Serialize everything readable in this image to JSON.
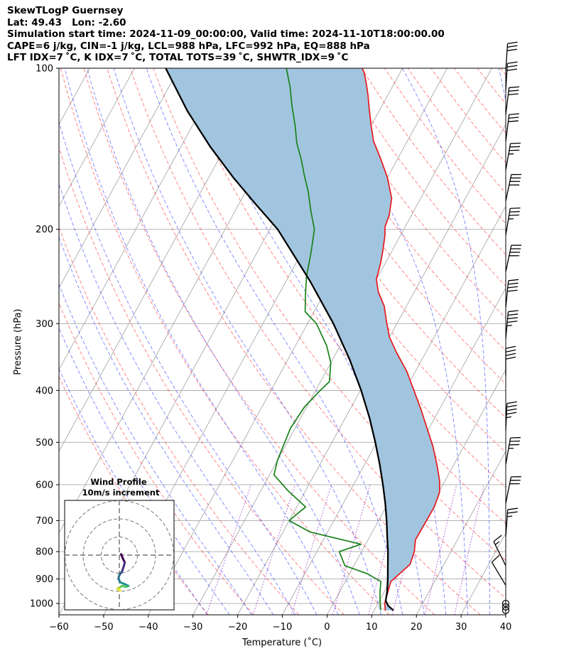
{
  "header": {
    "line1": "SkewTLogP Guernsey",
    "line2": "Lat: 49.43   Lon: -2.60",
    "line3": "Simulation start time: 2024-11-09_00:00:00, Valid time: 2024-11-10T18:00:00.00",
    "line4": "CAPE=6 j/kg, CIN=-1 j/kg, LCL=988 hPa, LFC=992 hPa, EQ=888 hPa",
    "line5": "LFT IDX=7 ˚C, K IDX=7 ˚C, TOTAL TOTS=39 ˚C, SHWTR_IDX=9 ˚C"
  },
  "chart_data": {
    "type": "line",
    "title": "SkewTLogP Guernsey",
    "xlabel": "Temperature (˚C)",
    "ylabel": "Pressure (hPa)",
    "xlim": [
      -60,
      40
    ],
    "ylim": [
      1050,
      100
    ],
    "x_ticks": [
      -60,
      -50,
      -40,
      -30,
      -20,
      -10,
      0,
      10,
      20,
      30,
      40
    ],
    "x_tick_labels": [
      "−60",
      "−50",
      "−40",
      "−30",
      "−20",
      "−10",
      "0",
      "10",
      "20",
      "30",
      "40"
    ],
    "y_ticks": [
      100,
      200,
      300,
      400,
      500,
      600,
      700,
      800,
      900,
      1000
    ],
    "y_tick_labels": [
      "100",
      "200",
      "300",
      "400",
      "500",
      "600",
      "700",
      "800",
      "900",
      "1000"
    ],
    "skew_px_per_decade": 412,
    "grid": true,
    "series": [
      {
        "name": "Temperature",
        "color": "#e8181c",
        "points": [
          [
            12.5,
            1030
          ],
          [
            11.5,
            1000
          ],
          [
            10.8,
            950
          ],
          [
            10.2,
            910
          ],
          [
            11.2,
            880
          ],
          [
            12.4,
            845
          ],
          [
            11.8,
            800
          ],
          [
            10.6,
            760
          ],
          [
            10.7,
            720
          ],
          [
            10.8,
            660
          ],
          [
            10.2,
            620
          ],
          [
            8.8,
            590
          ],
          [
            6.2,
            550
          ],
          [
            3.2,
            510
          ],
          [
            -0.5,
            470
          ],
          [
            -4.0,
            435
          ],
          [
            -8.0,
            400
          ],
          [
            -12.0,
            368
          ],
          [
            -16.5,
            340
          ],
          [
            -20.0,
            318
          ],
          [
            -22.5,
            298
          ],
          [
            -25.0,
            278
          ],
          [
            -28.0,
            262
          ],
          [
            -30.0,
            248
          ],
          [
            -31.0,
            232
          ],
          [
            -32.0,
            220
          ],
          [
            -33.5,
            205
          ],
          [
            -34.5,
            198
          ],
          [
            -35.0,
            188
          ],
          [
            -36.5,
            175
          ],
          [
            -40.0,
            160
          ],
          [
            -44.0,
            147
          ],
          [
            -47.5,
            137
          ],
          [
            -50.0,
            128
          ],
          [
            -52.5,
            119
          ],
          [
            -54.5,
            112
          ],
          [
            -56.5,
            106
          ],
          [
            -58.0,
            102
          ],
          [
            -59.0,
            100
          ]
        ]
      },
      {
        "name": "Dewpoint",
        "color": "#188218",
        "points": [
          [
            11.5,
            1030
          ],
          [
            10.5,
            1000
          ],
          [
            9.0,
            950
          ],
          [
            8.0,
            910
          ],
          [
            4.0,
            880
          ],
          [
            -2.0,
            850
          ],
          [
            -5.0,
            800
          ],
          [
            -1.0,
            775
          ],
          [
            -14.0,
            735
          ],
          [
            -20.0,
            700
          ],
          [
            -18.0,
            660
          ],
          [
            -24.0,
            615
          ],
          [
            -29.0,
            575
          ],
          [
            -30.0,
            540
          ],
          [
            -30.5,
            505
          ],
          [
            -31.0,
            470
          ],
          [
            -30.5,
            430
          ],
          [
            -29.0,
            400
          ],
          [
            -28.0,
            385
          ],
          [
            -30.0,
            355
          ],
          [
            -33.0,
            330
          ],
          [
            -38.0,
            300
          ],
          [
            -42.0,
            285
          ],
          [
            -44.0,
            265
          ],
          [
            -46.0,
            245
          ],
          [
            -48.0,
            220
          ],
          [
            -50.0,
            200
          ],
          [
            -53.0,
            185
          ],
          [
            -56.0,
            170
          ],
          [
            -59.0,
            158
          ],
          [
            -61.5,
            148
          ],
          [
            -64.5,
            138
          ],
          [
            -67.0,
            128
          ],
          [
            -70.0,
            118
          ],
          [
            -73.0,
            108
          ],
          [
            -76.0,
            100
          ]
        ]
      },
      {
        "name": "Parcel Profile",
        "color": "#000000",
        "points": [
          [
            14.3,
            1030
          ],
          [
            12.6,
            1010
          ],
          [
            11.4,
            988
          ],
          [
            10.6,
            950
          ],
          [
            9.2,
            900
          ],
          [
            7.6,
            850
          ],
          [
            5.9,
            800
          ],
          [
            3.9,
            750
          ],
          [
            1.8,
            700
          ],
          [
            -0.6,
            650
          ],
          [
            -3.4,
            600
          ],
          [
            -6.6,
            550
          ],
          [
            -10.3,
            500
          ],
          [
            -14.6,
            450
          ],
          [
            -19.8,
            400
          ],
          [
            -26.2,
            350
          ],
          [
            -34.2,
            300
          ],
          [
            -44.6,
            250
          ],
          [
            -58.2,
            200
          ],
          [
            -66.0,
            180
          ],
          [
            -74.5,
            160
          ],
          [
            -83.5,
            140
          ],
          [
            -93.0,
            120
          ],
          [
            -103.0,
            100
          ]
        ]
      }
    ],
    "wind_barbs": [
      {
        "p": 1030,
        "u": 0,
        "v": 0
      },
      {
        "p": 1015,
        "u": 0,
        "v": 0
      },
      {
        "p": 1000,
        "u": 0,
        "v": 0
      },
      {
        "p": 925,
        "u": -3,
        "v": 5
      },
      {
        "p": 850,
        "u": -3,
        "v": 6
      },
      {
        "p": 750,
        "u": 1,
        "v": 14
      },
      {
        "p": 650,
        "u": 3,
        "v": 15
      },
      {
        "p": 550,
        "u": 3,
        "v": 17
      },
      {
        "p": 475,
        "u": 1,
        "v": 22
      },
      {
        "p": 375,
        "u": 0,
        "v": 20
      },
      {
        "p": 320,
        "u": 2,
        "v": 22
      },
      {
        "p": 280,
        "u": 2,
        "v": 20
      },
      {
        "p": 240,
        "u": 4,
        "v": 19
      },
      {
        "p": 205,
        "u": 3,
        "v": 18
      },
      {
        "p": 177,
        "u": 4,
        "v": 19
      },
      {
        "p": 155,
        "u": 3,
        "v": 17
      },
      {
        "p": 137,
        "u": 2,
        "v": 16
      },
      {
        "p": 122,
        "u": 2,
        "v": 16
      },
      {
        "p": 110,
        "u": 1,
        "v": 16
      },
      {
        "p": 101,
        "u": 1,
        "v": 15
      }
    ],
    "hodograph": {
      "title_line1": "Wind Profile",
      "title_line2": "10m/s increment",
      "ring_increment": 10,
      "rings": 3,
      "points": [
        [
          1.0,
          0.5
        ],
        [
          2.0,
          -2.0
        ],
        [
          3.0,
          -4.0
        ],
        [
          2.5,
          -6.0
        ],
        [
          1.5,
          -9.0
        ],
        [
          0.0,
          -11.0
        ],
        [
          -0.5,
          -13.0
        ],
        [
          0.5,
          -15.0
        ],
        [
          3.0,
          -16.0
        ],
        [
          5.0,
          -17.0
        ],
        [
          3.5,
          -17.5
        ],
        [
          1.5,
          -17.0
        ],
        [
          0.0,
          -18.0
        ],
        [
          -1.0,
          -18.5
        ],
        [
          -0.5,
          -19.0
        ],
        [
          0.5,
          -19.5
        ]
      ]
    },
    "colors": {
      "fill": "#a2c5df",
      "isotherm": "#aaaaaa",
      "isobar": "#aaaaaa",
      "dry_adiabat": "#ff3333",
      "moist_adiabat": "#3344ff",
      "mixing_ratio": "#9933cc"
    }
  }
}
